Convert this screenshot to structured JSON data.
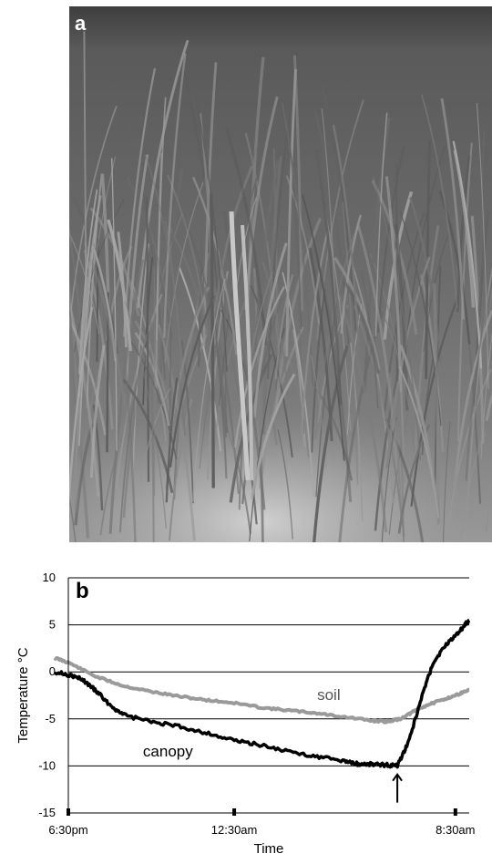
{
  "panel_a": {
    "label": "a"
  },
  "chart_data": {
    "type": "line",
    "panel_label": "b",
    "title": "",
    "xlabel": "Time",
    "ylabel": "Temperature °C",
    "ylim": [
      -15,
      10
    ],
    "yticks": [
      10,
      5,
      0,
      -5,
      -10,
      -15
    ],
    "xlim": [
      0,
      14.5
    ],
    "xticks": [
      {
        "x": 0,
        "label": "6:30pm"
      },
      {
        "x": 6,
        "label": "12:30am"
      },
      {
        "x": 14,
        "label": "8:30am"
      }
    ],
    "grid": true,
    "arrow_annotation_x": 11.9,
    "series": [
      {
        "name": "soil",
        "color": "#9a9a9a",
        "x": [
          -0.5,
          0,
          1,
          2,
          3,
          4,
          5,
          6,
          7,
          8,
          9,
          10,
          11,
          11.5,
          12,
          12.5,
          13,
          13.5,
          14,
          14.5
        ],
        "y": [
          1.5,
          1.0,
          -0.5,
          -1.5,
          -2.1,
          -2.6,
          -3.0,
          -3.3,
          -3.8,
          -4.1,
          -4.4,
          -4.8,
          -5.2,
          -5.3,
          -5.0,
          -4.2,
          -3.5,
          -3.0,
          -2.5,
          -1.9
        ]
      },
      {
        "name": "canopy",
        "color": "#000000",
        "x": [
          -0.5,
          0,
          0.5,
          1,
          1.5,
          2,
          3,
          4,
          5,
          6,
          7,
          8,
          9,
          10,
          10.5,
          11,
          11.5,
          11.9,
          12.3,
          12.8,
          13.2,
          13.7,
          14.2,
          14.5
        ],
        "y": [
          0.0,
          -0.3,
          -0.8,
          -2.0,
          -3.5,
          -4.6,
          -5.3,
          -5.8,
          -6.5,
          -7.3,
          -7.8,
          -8.5,
          -9.0,
          -9.5,
          -9.8,
          -9.8,
          -9.9,
          -10.0,
          -7.5,
          -2.5,
          1.0,
          3.0,
          4.5,
          5.5
        ]
      }
    ]
  }
}
